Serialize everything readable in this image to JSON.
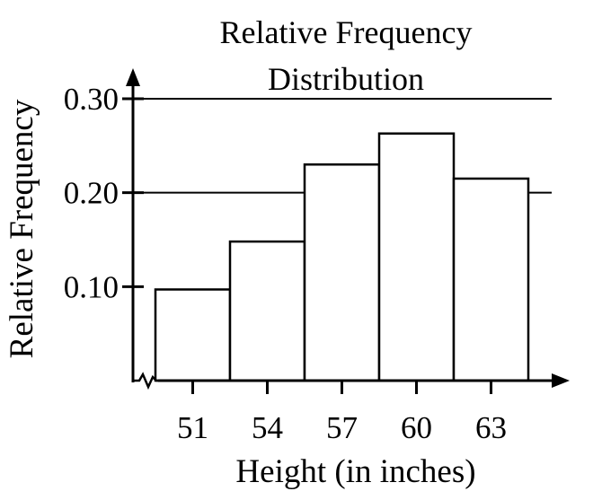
{
  "chart_data": {
    "type": "bar",
    "title_lines": [
      "Relative Frequency",
      "Distribution"
    ],
    "xlabel": "Height (in inches)",
    "ylabel": "Relative Frequency",
    "categories": [
      "51",
      "54",
      "57",
      "60",
      "63"
    ],
    "values": [
      0.097,
      0.148,
      0.23,
      0.263,
      0.215
    ],
    "bin_edges": [
      49.5,
      52.5,
      55.5,
      58.5,
      61.5,
      64.5
    ],
    "ylim": [
      0,
      0.3
    ],
    "yticks": [
      0.1,
      0.2,
      0.3
    ],
    "ytick_labels": [
      "0.10",
      "0.20",
      "0.30"
    ],
    "grid_lines": [
      0.2,
      0.3
    ],
    "legend": "none",
    "colors": {
      "bar_fill": "#ffffff",
      "bar_stroke": "#000000",
      "axis": "#000000"
    }
  }
}
